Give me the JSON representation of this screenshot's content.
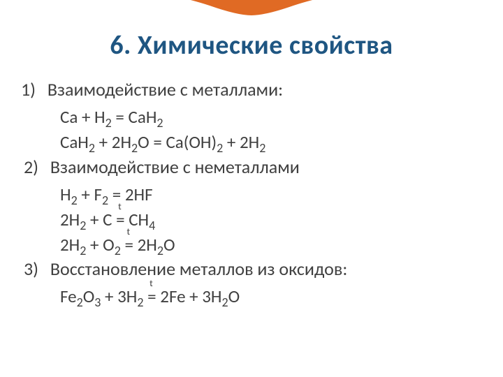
{
  "colors": {
    "title_color": "#1f5682",
    "text_color": "#404040",
    "decoration_fill": "#e06a24",
    "background": "#ffffff"
  },
  "typography": {
    "title_fontsize": 38,
    "heading_fontsize": 26,
    "equation_fontsize": 25
  },
  "title": "6. Химические свойства",
  "sections": [
    {
      "number": "1)",
      "heading": "Взаимодействие с металлами:",
      "equations": [
        {
          "parts": [
            "Ca + H",
            {
              "sub": "2"
            },
            " = CaH",
            {
              "sub": "2"
            }
          ]
        },
        {
          "parts": [
            "CaH",
            {
              "sub": "2"
            },
            " + 2H",
            {
              "sub": "2"
            },
            "O = Ca(OH)",
            {
              "sub": "2"
            },
            " + 2H",
            {
              "sub": "2"
            }
          ]
        }
      ]
    },
    {
      "number": "2)",
      "heading": "Взаимодействие с неметаллами",
      "equations": [
        {
          "parts": [
            "H",
            {
              "sub": "2"
            },
            " + F",
            {
              "sub": "2"
            },
            " = 2HF"
          ]
        },
        {
          "parts": [
            "2H",
            {
              "sub": "2"
            },
            " + C ",
            {
              "eq_t": true
            },
            " CH",
            {
              "sub": "4"
            }
          ]
        },
        {
          "parts": [
            "2H",
            {
              "sub": "2"
            },
            " + O",
            {
              "sub": "2"
            },
            " ",
            {
              "eq_t": true
            },
            " 2H",
            {
              "sub": "2"
            },
            "O"
          ]
        }
      ]
    },
    {
      "number": "3)",
      "heading": "Восстановление металлов из оксидов:",
      "equations": [
        {
          "parts": [
            "Fe",
            {
              "sub": "2"
            },
            "O",
            {
              "sub": "3"
            },
            " + 3H",
            {
              "sub": "2"
            },
            " ",
            {
              "eq_t": true
            },
            " 2Fe + 3H",
            {
              "sub": "2"
            },
            "O"
          ]
        }
      ]
    }
  ]
}
